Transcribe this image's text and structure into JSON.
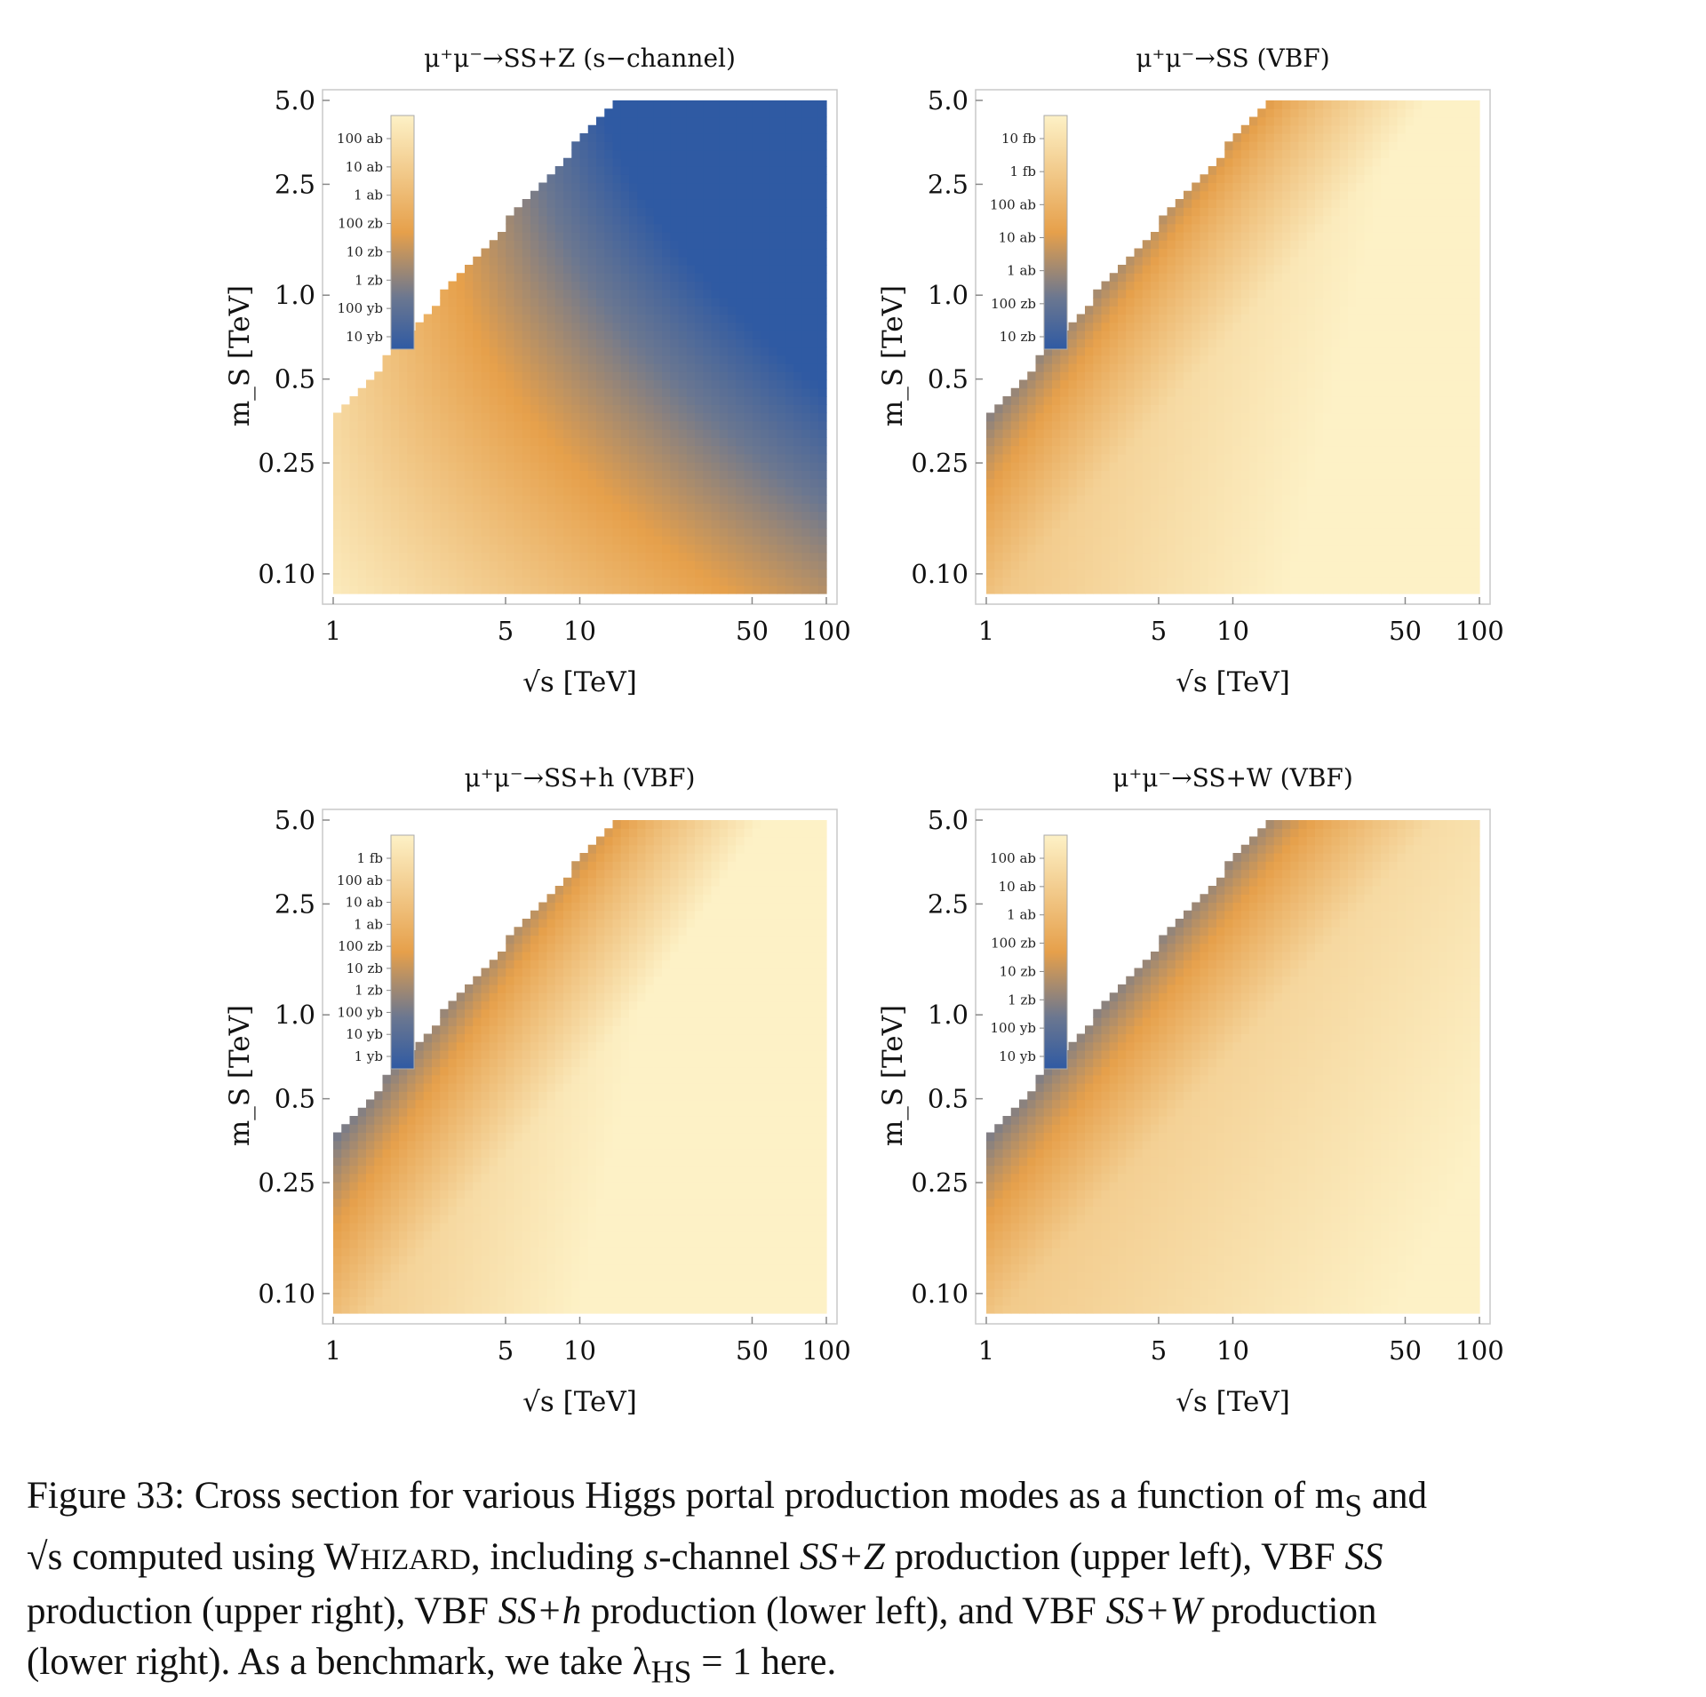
{
  "colors": {
    "low": "#2f5aa3",
    "mid": "#e6a04b",
    "high": "#fdf1c6",
    "frame": "#c8c8c8"
  },
  "chart_data": [
    {
      "type": "heatmap",
      "title": "μ⁺μ⁻→SS+Z (s−channel)",
      "xlabel": "√s [TeV]",
      "ylabel": "m_S [TeV]",
      "xscale": "log",
      "yscale": "log",
      "xlim": [
        1,
        100
      ],
      "ylim": [
        0.085,
        5.0
      ],
      "xticks": [
        "1",
        "5",
        "10",
        "50",
        "100"
      ],
      "yticks": [
        "5.0",
        "2.5",
        "1.0",
        "0.5",
        "0.25",
        "0.10"
      ],
      "colorbar_labels": [
        "100 ab",
        "10 ab",
        "1 ab",
        "100 zb",
        "10 zb",
        "1 zb",
        "100 yb",
        "10 yb"
      ],
      "kinematic_boundary": "m_S < √s / 2 (upper-left region empty)",
      "trend": "highest cross section at small √s and small m_S (~100 ab); lowest at large √s and large m_S (~10 yb)"
    },
    {
      "type": "heatmap",
      "title": "μ⁺μ⁻→SS (VBF)",
      "xlabel": "√s [TeV]",
      "ylabel": "m_S [TeV]",
      "xscale": "log",
      "yscale": "log",
      "xlim": [
        1,
        100
      ],
      "ylim": [
        0.085,
        5.0
      ],
      "xticks": [
        "1",
        "5",
        "10",
        "50",
        "100"
      ],
      "yticks": [
        "5.0",
        "2.5",
        "1.0",
        "0.5",
        "0.25",
        "0.10"
      ],
      "colorbar_labels": [
        "10 fb",
        "1 fb",
        "100 ab",
        "10 ab",
        "1 ab",
        "100 zb",
        "10 zb"
      ],
      "kinematic_boundary": "m_S < √s / 2 (upper-left region empty)",
      "trend": "cross section grows with √s and falls with m_S; largest (~10 fb) at high √s, small m_S"
    },
    {
      "type": "heatmap",
      "title": "μ⁺μ⁻→SS+h (VBF)",
      "xlabel": "√s [TeV]",
      "ylabel": "m_S [TeV]",
      "xscale": "log",
      "yscale": "log",
      "xlim": [
        1,
        100
      ],
      "ylim": [
        0.085,
        5.0
      ],
      "xticks": [
        "1",
        "5",
        "10",
        "50",
        "100"
      ],
      "yticks": [
        "5.0",
        "2.5",
        "1.0",
        "0.5",
        "0.25",
        "0.10"
      ],
      "colorbar_labels": [
        "1 fb",
        "100 ab",
        "10 ab",
        "1 ab",
        "100 zb",
        "10 zb",
        "1 zb",
        "100 yb",
        "10 yb",
        "1 yb"
      ],
      "kinematic_boundary": "m_S < √s / 2 (upper-left region empty)",
      "trend": "cross section grows with √s and falls with m_S; lowest near threshold"
    },
    {
      "type": "heatmap",
      "title": "μ⁺μ⁻→SS+W (VBF)",
      "xlabel": "√s [TeV]",
      "ylabel": "m_S [TeV]",
      "xscale": "log",
      "yscale": "log",
      "xlim": [
        1,
        100
      ],
      "ylim": [
        0.085,
        5.0
      ],
      "xticks": [
        "1",
        "5",
        "10",
        "50",
        "100"
      ],
      "yticks": [
        "5.0",
        "2.5",
        "1.0",
        "0.5",
        "0.25",
        "0.10"
      ],
      "colorbar_labels": [
        "100 ab",
        "10 ab",
        "1 ab",
        "100 zb",
        "10 zb",
        "1 zb",
        "100 yb",
        "10 yb"
      ],
      "kinematic_boundary": "m_S < √s / 2 (upper-left region empty)",
      "trend": "cross section grows with √s and falls with m_S; lowest near threshold"
    }
  ],
  "caption": {
    "line1": "Figure 33: Cross section for various Higgs portal production modes as a function of m",
    "line1_sub": "S",
    "line1_end": " and",
    "line2_sqrt": "√s",
    "line2_a": " computed using W",
    "line2_smallcaps": "HIZARD",
    "line2_b": ", including ",
    "line2_s": "s",
    "line2_c": "-channel ",
    "line2_ssz": "SS+Z",
    "line2_d": " production (upper left), VBF ",
    "line2_ss": "SS",
    "line3_a": "production (upper right), VBF ",
    "line3_ssh": "SS+h",
    "line3_b": " production (lower left), and VBF ",
    "line3_ssw": "SS+W",
    "line3_c": " production",
    "line4_a": "(lower right).  As a benchmark, we take λ",
    "line4_sub": "HS",
    "line4_b": " = 1 here."
  }
}
